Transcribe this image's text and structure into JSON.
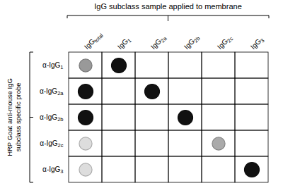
{
  "chart_data": {
    "type": "dot_matrix",
    "title": "IgG subclass sample applied to membrane",
    "ylabel": "HRP Goat anti-mouse IgG\nsubclass specific probe",
    "columns": [
      "IgGtotal",
      "IgG1",
      "IgG2a",
      "IgG2b",
      "IgG2c",
      "IgG3"
    ],
    "rows": [
      "α-IgG1",
      "α-IgG2a",
      "α-IgG2b",
      "α-IgG2c",
      "α-IgG3"
    ],
    "dots": [
      {
        "x": "IgGtotal",
        "y": "α-IgG1",
        "size": 180,
        "color": "#999999"
      },
      {
        "x": "IgG1",
        "y": "α-IgG1",
        "size": 240,
        "color": "#111111"
      },
      {
        "x": "IgGtotal",
        "y": "α-IgG2a",
        "size": 240,
        "color": "#111111"
      },
      {
        "x": "IgG2a",
        "y": "α-IgG2a",
        "size": 240,
        "color": "#111111"
      },
      {
        "x": "IgGtotal",
        "y": "α-IgG2b",
        "size": 240,
        "color": "#111111"
      },
      {
        "x": "IgG2b",
        "y": "α-IgG2b",
        "size": 240,
        "color": "#111111"
      },
      {
        "x": "IgGtotal",
        "y": "α-IgG2c",
        "size": 180,
        "color": "#dddddd"
      },
      {
        "x": "IgG2c",
        "y": "α-IgG2c",
        "size": 180,
        "color": "#aaaaaa"
      },
      {
        "x": "IgGtotal",
        "y": "α-IgG3",
        "size": 180,
        "color": "#dddddd"
      },
      {
        "x": "IgG3",
        "y": "α-IgG3",
        "size": 240,
        "color": "#111111"
      }
    ]
  }
}
